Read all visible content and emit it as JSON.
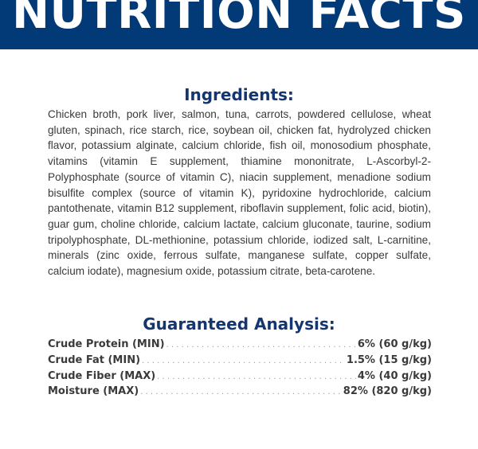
{
  "banner": {
    "title": "NUTRITION FACTS",
    "color": "#023a78"
  },
  "ingredients": {
    "heading": "Ingredients:",
    "text": "Chicken broth, pork liver, salmon, tuna, carrots, powdered cellulose, wheat gluten, spinach, rice starch, rice, soybean oil, chicken fat, hydrolyzed chicken flavor, potassium alginate, calcium chloride, fish oil, monosodium phosphate, vitamins (vitamin E supplement, thiamine mononitrate, L-Ascorbyl-2-Polyphosphate (source of vitamin C), niacin supplement, menadione sodium bisulfite complex (source of vitamin K), pyridoxine hydrochloride, calcium pantothenate, vitamin B12 supplement, riboflavin supplement, folic acid, biotin), guar gum, choline chloride, calcium lactate, calcium gluconate, taurine, sodium tripolyphosphate, DL-methionine, potassium chloride, iodized salt, L-carnitine, minerals (zinc oxide, ferrous sulfate, manganese sulfate, copper sulfate, calcium iodate), magnesium oxide, potassium citrate, beta-carotene."
  },
  "analysis": {
    "heading": "Guaranteed Analysis:",
    "rows": [
      {
        "label": "Crude Protein (MIN)",
        "value": "6% (60 g/kg)"
      },
      {
        "label": "Crude Fat (MIN)",
        "value": "1.5% (15 g/kg)"
      },
      {
        "label": "Crude Fiber (MAX)",
        "value": "4% (40 g/kg)"
      },
      {
        "label": "Moisture (MAX)",
        "value": "82% (820 g/kg)"
      }
    ]
  }
}
